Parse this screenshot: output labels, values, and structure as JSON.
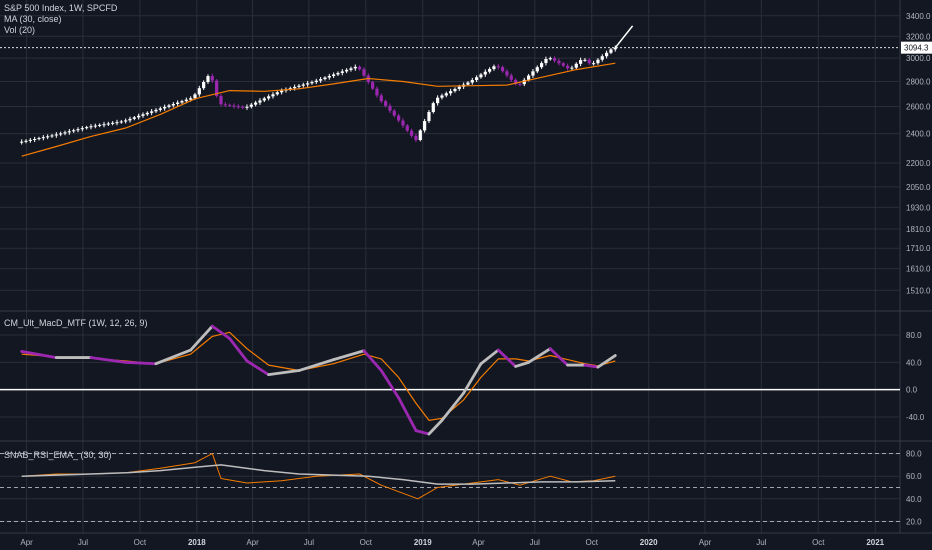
{
  "legend": {
    "title": "S&P 500 Index, 1W, SPCFD",
    "ma": "MA (30, close)",
    "vol": "Vol (20)",
    "macd": "CM_Ult_MacD_MTF (1W, 12, 26, 9)",
    "rsi": "SNAB_RSI_EMA_ (30, 30)"
  },
  "last_price_label": "3094.3",
  "colors": {
    "background": "#131722",
    "grid": "#2a2e39",
    "candle_up": "#ffffff",
    "candle_down": "#9c27b0",
    "ma": "#f57c00",
    "macd_rising": "#bdbdbd",
    "macd_falling": "#9c27b0",
    "signal": "#f57c00",
    "rsi": "#f57c00",
    "rsi_ema": "#bdbdbd",
    "zero_line": "#ffffff"
  },
  "chart_data": [
    {
      "type": "candlestick",
      "title": "S&P 500 Index, 1W, SPCFD",
      "y_scale": "log",
      "ylim": [
        1450,
        3500
      ],
      "y_ticks": [
        1510,
        1610,
        1710,
        1810,
        1930,
        2050,
        2200,
        2400,
        2600,
        2800,
        3000,
        3200,
        3400
      ],
      "y_tick_labels": [
        "1510.0",
        "1610.0",
        "1710.0",
        "1810.0",
        "1930.0",
        "2050.0",
        "2200.0",
        "2400.0",
        "2600.0",
        "2800.0",
        "3000.0",
        "3200.0",
        "3400.0"
      ],
      "last_value": 3094.3,
      "series": [
        {
          "name": "MA (30, close)",
          "x": [
            "2017-03-24",
            "2017-05-19",
            "2017-07-14",
            "2017-09-08",
            "2017-11-03",
            "2017-12-29",
            "2018-02-23",
            "2018-04-20",
            "2018-06-15",
            "2018-08-10",
            "2018-10-05",
            "2018-11-30",
            "2019-01-25",
            "2019-03-22",
            "2019-05-17",
            "2019-07-12",
            "2019-09-06",
            "2019-11-08"
          ],
          "values": [
            2245,
            2310,
            2380,
            2440,
            2540,
            2660,
            2725,
            2720,
            2740,
            2780,
            2825,
            2800,
            2760,
            2765,
            2770,
            2835,
            2900,
            2955
          ]
        },
        {
          "name": "S&P 500 Index",
          "x": [
            "2017-03-24",
            "2017-05-19",
            "2017-07-14",
            "2017-09-08",
            "2017-11-03",
            "2017-12-29",
            "2018-01-26",
            "2018-02-09",
            "2018-03-23",
            "2018-05-18",
            "2018-07-13",
            "2018-09-21",
            "2018-10-26",
            "2018-12-24",
            "2019-01-25",
            "2019-03-22",
            "2019-05-03",
            "2019-06-07",
            "2019-07-26",
            "2019-08-30",
            "2019-09-20",
            "2019-10-04",
            "2019-11-08"
          ],
          "values": [
            2340,
            2390,
            2450,
            2490,
            2580,
            2670,
            2870,
            2620,
            2590,
            2720,
            2800,
            2930,
            2660,
            2350,
            2660,
            2800,
            2940,
            2760,
            3010,
            2900,
            3000,
            2940,
            3094
          ]
        }
      ],
      "projection": {
        "x": [
          "2019-11-08",
          "2019-12-06"
        ],
        "values": [
          3094,
          3300
        ]
      }
    },
    {
      "type": "line",
      "title": "CM_Ult_MacD_MTF (1W, 12, 26, 9)",
      "ylim": [
        -65,
        105
      ],
      "y_ticks": [
        -40,
        0,
        40,
        80
      ],
      "y_tick_labels": [
        "-40.0",
        "0.0",
        "40.0",
        "80.0"
      ],
      "series": [
        {
          "name": "MACD",
          "x": [
            "2017-03-24",
            "2017-05-19",
            "2017-07-14",
            "2017-09-08",
            "2017-10-27",
            "2017-12-22",
            "2018-01-26",
            "2018-02-23",
            "2018-03-23",
            "2018-04-27",
            "2018-06-15",
            "2018-08-10",
            "2018-09-28",
            "2018-10-26",
            "2018-11-23",
            "2018-12-21",
            "2019-01-11",
            "2019-02-01",
            "2019-03-08",
            "2019-04-05",
            "2019-05-03",
            "2019-05-31",
            "2019-06-21",
            "2019-07-26",
            "2019-08-23",
            "2019-09-20",
            "2019-10-11",
            "2019-11-08"
          ],
          "values": [
            56,
            47,
            47,
            40,
            38,
            58,
            93,
            75,
            42,
            22,
            28,
            44,
            57,
            28,
            -12,
            -60,
            -65,
            -45,
            -5,
            38,
            58,
            34,
            40,
            60,
            36,
            36,
            33,
            50
          ]
        },
        {
          "name": "Signal",
          "x": [
            "2017-03-24",
            "2017-05-19",
            "2017-07-14",
            "2017-09-08",
            "2017-10-27",
            "2017-12-22",
            "2018-01-26",
            "2018-02-23",
            "2018-03-23",
            "2018-04-27",
            "2018-06-15",
            "2018-08-10",
            "2018-09-28",
            "2018-10-26",
            "2018-11-23",
            "2018-12-21",
            "2019-01-11",
            "2019-02-01",
            "2019-03-08",
            "2019-04-05",
            "2019-05-03",
            "2019-05-31",
            "2019-06-21",
            "2019-07-26",
            "2019-08-23",
            "2019-09-20",
            "2019-10-11",
            "2019-11-08"
          ],
          "values": [
            52,
            48,
            46,
            42,
            38,
            52,
            78,
            84,
            60,
            36,
            28,
            38,
            52,
            45,
            18,
            -20,
            -45,
            -42,
            -15,
            18,
            45,
            45,
            42,
            50,
            44,
            38,
            35,
            42
          ]
        }
      ]
    },
    {
      "type": "line",
      "title": "SNAB_RSI_EMA_ (30, 30)",
      "ylim": [
        15,
        85
      ],
      "y_ticks": [
        20,
        40,
        60,
        80
      ],
      "y_tick_labels": [
        "20.0",
        "40.0",
        "60.0",
        "80.0"
      ],
      "reference_lines": [
        20,
        50,
        80
      ],
      "series": [
        {
          "name": "RSI",
          "x": [
            "2017-03-24",
            "2017-05-19",
            "2017-07-14",
            "2017-09-08",
            "2017-11-03",
            "2017-12-29",
            "2018-01-26",
            "2018-02-09",
            "2018-03-23",
            "2018-05-18",
            "2018-07-13",
            "2018-09-21",
            "2018-10-26",
            "2018-12-24",
            "2019-01-25",
            "2019-03-22",
            "2019-05-03",
            "2019-06-07",
            "2019-07-26",
            "2019-08-30",
            "2019-10-04",
            "2019-11-08"
          ],
          "values": [
            60,
            62,
            62,
            63,
            67,
            72,
            80,
            58,
            54,
            56,
            60,
            62,
            52,
            40,
            50,
            54,
            57,
            52,
            60,
            55,
            56,
            60
          ]
        },
        {
          "name": "EMA",
          "x": [
            "2017-03-24",
            "2017-05-19",
            "2017-07-14",
            "2017-09-08",
            "2017-11-03",
            "2017-12-29",
            "2018-02-09",
            "2018-04-20",
            "2018-06-15",
            "2018-08-10",
            "2018-10-05",
            "2018-11-30",
            "2019-01-25",
            "2019-03-22",
            "2019-05-17",
            "2019-07-12",
            "2019-09-06",
            "2019-11-08"
          ],
          "values": [
            60,
            61,
            62,
            63,
            65,
            68,
            70,
            65,
            62,
            61,
            60,
            57,
            53,
            53,
            54,
            55,
            55,
            56
          ]
        }
      ]
    }
  ],
  "x_axis": {
    "ticks": [
      {
        "label": "Apr",
        "date": "2017-04-01",
        "bold": false
      },
      {
        "label": "Jul",
        "date": "2017-07-01",
        "bold": false
      },
      {
        "label": "Oct",
        "date": "2017-10-01",
        "bold": false
      },
      {
        "label": "2018",
        "date": "2018-01-01",
        "bold": true
      },
      {
        "label": "Apr",
        "date": "2018-04-01",
        "bold": false
      },
      {
        "label": "Jul",
        "date": "2018-07-01",
        "bold": false
      },
      {
        "label": "Oct",
        "date": "2018-10-01",
        "bold": false
      },
      {
        "label": "2019",
        "date": "2019-01-01",
        "bold": true
      },
      {
        "label": "Apr",
        "date": "2019-04-01",
        "bold": false
      },
      {
        "label": "Jul",
        "date": "2019-07-01",
        "bold": false
      },
      {
        "label": "Oct",
        "date": "2019-10-01",
        "bold": false
      },
      {
        "label": "2020",
        "date": "2020-01-01",
        "bold": true
      },
      {
        "label": "Apr",
        "date": "2020-04-01",
        "bold": false
      },
      {
        "label": "Jul",
        "date": "2020-07-01",
        "bold": false
      },
      {
        "label": "Oct",
        "date": "2020-10-01",
        "bold": false
      },
      {
        "label": "2021",
        "date": "2021-01-01",
        "bold": true
      }
    ]
  }
}
